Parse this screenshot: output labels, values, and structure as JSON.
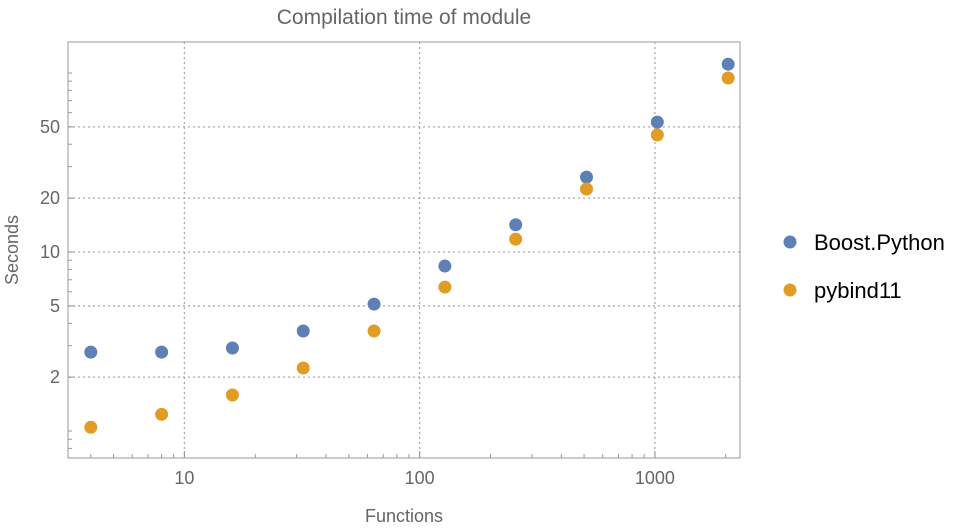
{
  "chart_data": {
    "type": "scatter",
    "title": "Compilation time of module",
    "xlabel": "Functions",
    "ylabel": "Seconds",
    "x_scale": "log",
    "y_scale": "log",
    "xlim": [
      3.2,
      2300
    ],
    "ylim": [
      0.707,
      149
    ],
    "grid": true,
    "legend_position": "right",
    "x_ticks": [
      10,
      100,
      1000
    ],
    "x_tick_labels": [
      "10",
      "100",
      "1000"
    ],
    "y_ticks": [
      2,
      5,
      10,
      20,
      50
    ],
    "y_tick_labels": [
      "2",
      "5",
      "10",
      "20",
      "50"
    ],
    "x": [
      4,
      8,
      16,
      32,
      64,
      128,
      256,
      512,
      1024,
      2048
    ],
    "series": [
      {
        "name": "Boost.Python",
        "color": "#5e81b5",
        "values": [
          2.76,
          2.76,
          2.91,
          3.62,
          5.12,
          8.35,
          14.2,
          26.2,
          53.2,
          112
        ]
      },
      {
        "name": "pybind11",
        "color": "#e19c24",
        "values": [
          1.05,
          1.24,
          1.59,
          2.25,
          3.62,
          6.37,
          11.8,
          22.5,
          45.1,
          93.8
        ]
      }
    ]
  }
}
